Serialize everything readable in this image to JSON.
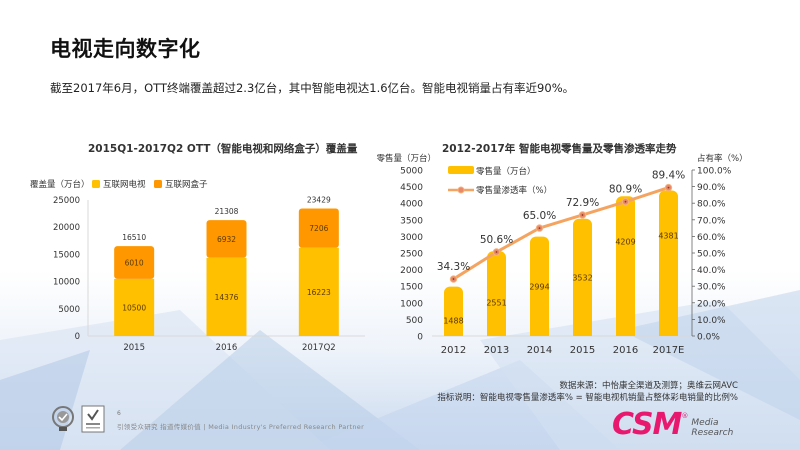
{
  "page": {
    "title": "电视走向数字化",
    "subtitle": "截至2017年6月，OTT终端覆盖超过2.3亿台，其中智能电视达1.6亿台。智能电视销量占有率近90%。",
    "page_number": "6",
    "tagline": "引领受众研究  指道传媒价值 | Media Industry's Preferred Research Partner",
    "source_line1": "数据来源：中怡康全渠道及测算；奥维云网AVC",
    "source_line2": "指标说明：智能电视零售量渗透率% = 智能电视机销量占整体彩电销量的比例%",
    "logo_main": "CSM",
    "logo_sub1": "Media",
    "logo_sub2": "Research",
    "logo_reg": "®"
  },
  "colors": {
    "bar_yellow": "#FFC000",
    "bar_orange": "#FF9800",
    "line_orange": "#F4A460",
    "marker_fill": "#E8896A",
    "logo_pink": "#E8186E"
  },
  "chart_data": [
    {
      "type": "bar",
      "stacked": true,
      "title": "2015Q1-2017Q2 OTT（智能电视和网络盒子）覆盖量",
      "ylabel": "覆盖量（万台）",
      "xlabel": "",
      "categories": [
        "2015",
        "2016",
        "2017Q2"
      ],
      "series": [
        {
          "name": "互联网电视",
          "values": [
            10500,
            14376,
            16223
          ],
          "color": "#FFC000"
        },
        {
          "name": "互联网盒子",
          "values": [
            6010,
            6932,
            7206
          ],
          "color": "#FF9800"
        }
      ],
      "totals": [
        16510,
        21308,
        23429
      ],
      "ylim": [
        0,
        25000
      ],
      "yticks": [
        0,
        5000,
        10000,
        15000,
        20000,
        25000
      ],
      "legend": "top-left",
      "grid": false
    },
    {
      "type": "bar+line",
      "title": "2012-2017年 智能电视零售量及零售渗透率走势",
      "ylabel_left": "零售量（万台）",
      "ylabel_right": "占有率（%）",
      "categories": [
        "2012",
        "2013",
        "2014",
        "2015",
        "2016",
        "2017E"
      ],
      "series": [
        {
          "name": "零售量（万台）",
          "type": "bar",
          "axis": "left",
          "values": [
            1488,
            2551,
            2994,
            3532,
            4209,
            4381
          ],
          "color": "#FFC000"
        },
        {
          "name": "零售量渗透率（%）",
          "type": "line",
          "axis": "right",
          "values": [
            34.3,
            50.6,
            65.0,
            72.9,
            80.9,
            89.4
          ],
          "labels": [
            "34.3%",
            "50.6%",
            "65.0%",
            "72.9%",
            "80.9%",
            "89.4%"
          ],
          "color": "#F4A460"
        }
      ],
      "ylim_left": [
        0,
        5000
      ],
      "yticks_left": [
        0,
        500,
        1000,
        1500,
        2000,
        2500,
        3000,
        3500,
        4000,
        4500,
        5000
      ],
      "ylim_right": [
        0,
        100
      ],
      "yticks_right": [
        "0.0%",
        "10.0%",
        "20.0%",
        "30.0%",
        "40.0%",
        "50.0%",
        "60.0%",
        "70.0%",
        "80.0%",
        "90.0%",
        "100.0%"
      ],
      "legend": "top-left",
      "grid": false
    }
  ]
}
